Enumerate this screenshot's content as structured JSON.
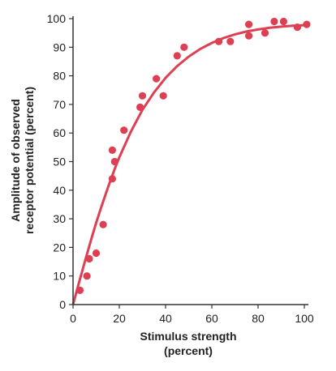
{
  "chart_data": {
    "type": "scatter",
    "xlabel_line1": "Stimulus strength",
    "xlabel_line2": "(percent)",
    "ylabel_line1": "Amplitude of observed",
    "ylabel_line2": "receptor potential (percent)",
    "xlim": [
      0,
      100
    ],
    "ylim": [
      0,
      100
    ],
    "xticks": [
      0,
      20,
      40,
      60,
      80,
      100
    ],
    "yticks": [
      0,
      10,
      20,
      30,
      40,
      50,
      60,
      70,
      80,
      90,
      100
    ],
    "grid": false,
    "color": "#dd4052",
    "points": [
      {
        "x": 3,
        "y": 5
      },
      {
        "x": 6,
        "y": 10
      },
      {
        "x": 7,
        "y": 16
      },
      {
        "x": 10,
        "y": 18
      },
      {
        "x": 13,
        "y": 28
      },
      {
        "x": 17,
        "y": 44
      },
      {
        "x": 17,
        "y": 54
      },
      {
        "x": 18,
        "y": 50
      },
      {
        "x": 22,
        "y": 61
      },
      {
        "x": 29,
        "y": 69
      },
      {
        "x": 30,
        "y": 73
      },
      {
        "x": 36,
        "y": 79
      },
      {
        "x": 39,
        "y": 73
      },
      {
        "x": 45,
        "y": 87
      },
      {
        "x": 48,
        "y": 90
      },
      {
        "x": 63,
        "y": 92
      },
      {
        "x": 68,
        "y": 92
      },
      {
        "x": 76,
        "y": 94
      },
      {
        "x": 76,
        "y": 98
      },
      {
        "x": 83,
        "y": 95
      },
      {
        "x": 87,
        "y": 99
      },
      {
        "x": 91,
        "y": 99
      },
      {
        "x": 97,
        "y": 97
      },
      {
        "x": 101,
        "y": 98
      }
    ],
    "fit_curve": {
      "type": "saturating-exponential",
      "x": [
        0,
        2,
        5,
        8,
        10,
        12,
        15,
        18,
        20,
        25,
        30,
        35,
        40,
        45,
        50,
        55,
        60,
        65,
        70,
        75,
        80,
        85,
        90,
        95,
        100
      ],
      "y": [
        0,
        6.0,
        14.8,
        23.2,
        28.6,
        33.6,
        40.8,
        47.4,
        51.5,
        60.5,
        68.1,
        74.2,
        79.3,
        83.4,
        86.7,
        89.4,
        91.5,
        93.2,
        94.5,
        95.5,
        96.2,
        96.8,
        97.2,
        97.5,
        97.7
      ]
    }
  }
}
